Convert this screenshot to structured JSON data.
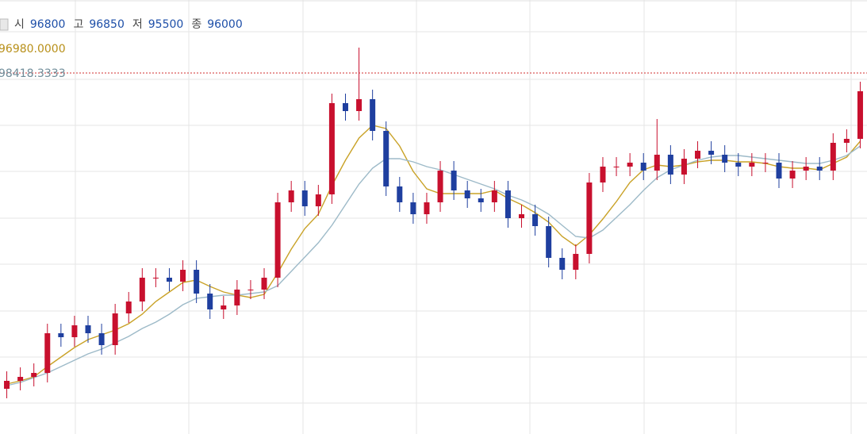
{
  "chart_data": {
    "type": "candlestick",
    "ylim": [
      74150,
      101500
    ],
    "up_color": "#c8102e",
    "down_color": "#1f3f9f",
    "ohlc_legend": [
      {
        "label": "시",
        "value": 96800
      },
      {
        "label": "고",
        "value": 96850
      },
      {
        "label": "저",
        "value": 95500
      },
      {
        "label": "종",
        "value": 96000
      }
    ],
    "open": [
      77000,
      77500,
      77750,
      78000,
      80500,
      80250,
      81000,
      80500,
      79750,
      81750,
      82500,
      84000,
      84000,
      83750,
      84500,
      83000,
      82000,
      82250,
      83250,
      83250,
      84000,
      88750,
      89500,
      88500,
      89250,
      95000,
      94500,
      95250,
      93250,
      89750,
      88750,
      88000,
      88750,
      90750,
      89500,
      89000,
      88750,
      89500,
      87750,
      88000,
      87250,
      85250,
      84500,
      85500,
      90000,
      91000,
      91000,
      91250,
      90750,
      91750,
      90500,
      91500,
      92000,
      91750,
      91250,
      91000,
      91250,
      91250,
      90250,
      90750,
      91000,
      90750,
      92500,
      92750
    ],
    "high": [
      78100,
      78350,
      78600,
      81100,
      81100,
      81600,
      81600,
      81100,
      82350,
      83100,
      84600,
      84600,
      84600,
      85100,
      85100,
      83600,
      82850,
      83850,
      83850,
      84600,
      89350,
      90100,
      90100,
      89850,
      95600,
      95600,
      98500,
      95850,
      93850,
      90350,
      89350,
      89350,
      91350,
      91350,
      90100,
      89600,
      90100,
      90100,
      88600,
      88600,
      87850,
      85850,
      86100,
      90600,
      91600,
      91600,
      91850,
      91850,
      94000,
      92350,
      92100,
      92600,
      92600,
      92350,
      91850,
      91850,
      91850,
      91850,
      91350,
      91600,
      91600,
      93100,
      93350,
      96350
    ],
    "low": [
      76400,
      76900,
      77150,
      77400,
      79650,
      79650,
      79900,
      79150,
      79150,
      81150,
      81900,
      83400,
      83150,
      83150,
      82400,
      81400,
      81400,
      81650,
      82650,
      82650,
      83400,
      88150,
      87900,
      87900,
      88650,
      93900,
      93900,
      92650,
      89150,
      88150,
      87400,
      87400,
      88150,
      88900,
      88400,
      88150,
      88150,
      87150,
      87150,
      86650,
      84650,
      83900,
      83900,
      84900,
      89400,
      90400,
      90400,
      90150,
      90150,
      89900,
      89900,
      90900,
      91150,
      90650,
      90400,
      90400,
      90650,
      89650,
      89650,
      90150,
      90150,
      90150,
      91900,
      92150
    ],
    "close": [
      77500,
      77750,
      78000,
      80500,
      80250,
      81000,
      80500,
      79750,
      81750,
      82500,
      84000,
      84000,
      83750,
      84500,
      83000,
      82000,
      82250,
      83250,
      83250,
      84000,
      88750,
      89500,
      88500,
      89250,
      95000,
      94500,
      95250,
      93250,
      89750,
      88750,
      88000,
      88750,
      90750,
      89500,
      89000,
      88750,
      89500,
      87750,
      88000,
      87250,
      85250,
      84500,
      85500,
      90000,
      91000,
      91000,
      91250,
      90750,
      91750,
      90500,
      91500,
      92000,
      91750,
      91250,
      91000,
      91250,
      91250,
      90250,
      90750,
      91000,
      90750,
      92500,
      92750,
      95750
    ],
    "ma_lines": [
      {
        "color": "#c9a227",
        "value": 96980,
        "value_label": "96980.0000",
        "values": [
          77300,
          77500,
          77750,
          78400,
          79000,
          79600,
          80100,
          80400,
          80700,
          81100,
          81700,
          82500,
          83100,
          83700,
          83850,
          83450,
          83100,
          82900,
          82750,
          82950,
          84300,
          85800,
          87100,
          88000,
          89800,
          91400,
          92800,
          93600,
          93400,
          92300,
          90700,
          89600,
          89300,
          89300,
          89300,
          89300,
          89500,
          89000,
          88600,
          88100,
          87500,
          86600,
          86000,
          86700,
          87700,
          88800,
          90000,
          90800,
          91100,
          91000,
          91100,
          91300,
          91400,
          91400,
          91300,
          91300,
          91200,
          91000,
          90900,
          90900,
          90800,
          91200,
          91600,
          92600
        ]
      },
      {
        "color": "#9dbac8",
        "value": 98418.3333,
        "value_label": "98418.3333",
        "values": [
          77200,
          77400,
          77700,
          78000,
          78400,
          78800,
          79200,
          79500,
          79900,
          80300,
          80800,
          81200,
          81700,
          82300,
          82700,
          82800,
          82900,
          82900,
          83000,
          83100,
          83500,
          84400,
          85300,
          86200,
          87300,
          88600,
          89900,
          90900,
          91500,
          91500,
          91300,
          91000,
          90800,
          90500,
          90200,
          89900,
          89600,
          89200,
          88900,
          88500,
          88000,
          87300,
          86600,
          86500,
          87000,
          87800,
          88600,
          89500,
          90300,
          90800,
          91100,
          91400,
          91600,
          91700,
          91700,
          91600,
          91500,
          91400,
          91300,
          91200,
          91200,
          91400,
          91700,
          92300
        ]
      }
    ]
  }
}
